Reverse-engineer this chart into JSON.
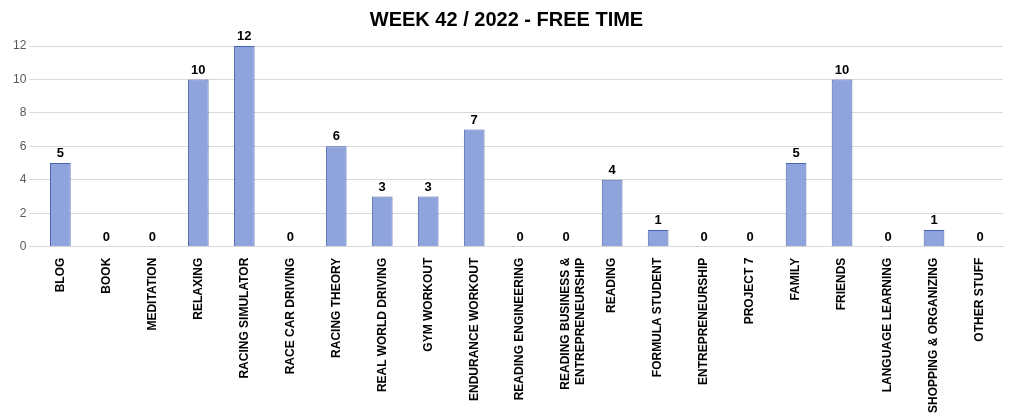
{
  "chart_data": {
    "type": "bar",
    "title": "WEEK 42 / 2022 - FREE TIME",
    "categories": [
      "BLOG",
      "BOOK",
      "MEDITATION",
      "RELAXING",
      "RACING SIMULATOR",
      "RACE CAR DRIVING",
      "RACING THEORY",
      "REAL WORLD DRIVING",
      "GYM WORKOUT",
      "ENDURANCE WORKOUT",
      "READING ENGINEERING",
      "READING BUSINESS & ENTREPRENEURSHIP",
      "READING",
      "FORMULA STUDENT",
      "ENTREPRENEURSHIP",
      "PROJECT 7",
      "FAMILY",
      "FRIENDS",
      "LANGUAGE LEARNING",
      "SHOPPING & ORGANIZING",
      "OTHER STUFF"
    ],
    "values": [
      5,
      0,
      0,
      10,
      12,
      0,
      6,
      3,
      3,
      7,
      0,
      0,
      4,
      1,
      0,
      0,
      5,
      10,
      0,
      1,
      0
    ],
    "color": "#8fa3dc",
    "ylim": [
      0,
      12
    ],
    "yticks": [
      0,
      2,
      4,
      6,
      8,
      10,
      12
    ],
    "grid": "y",
    "data_labels": true,
    "legend": false
  }
}
